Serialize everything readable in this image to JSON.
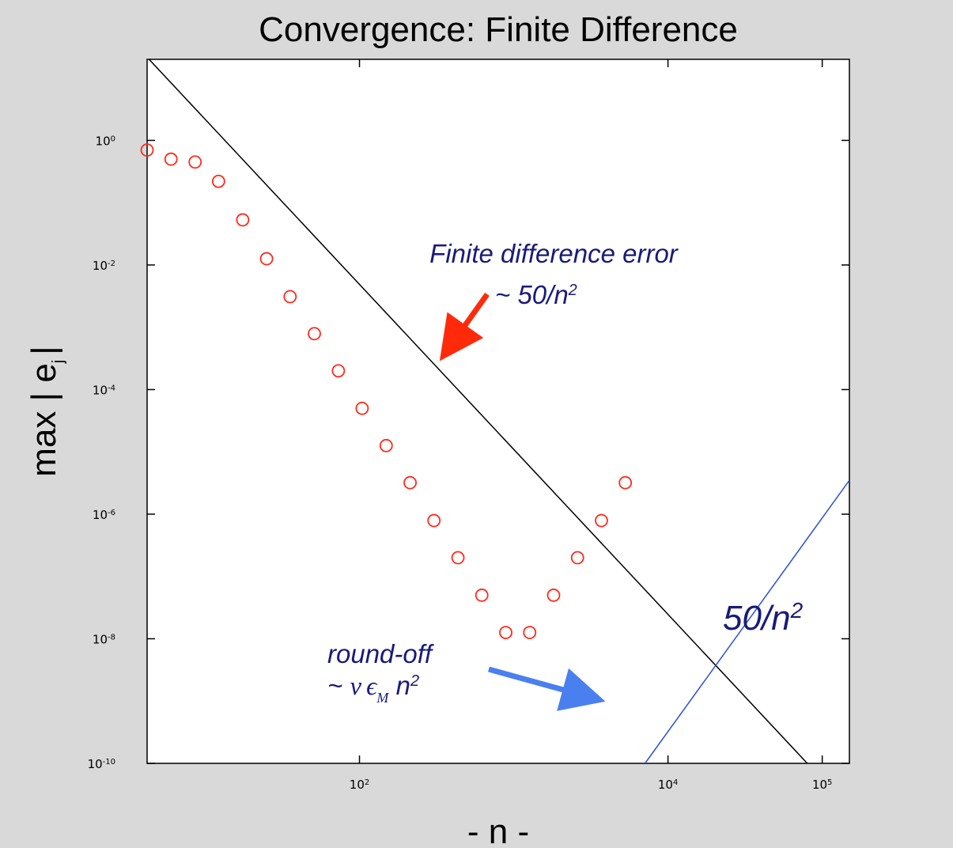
{
  "chart_data": {
    "type": "scatter",
    "title": "Convergence: Finite Difference",
    "xlabel": "- n -",
    "ylabel_main": "max | e",
    "ylabel_sub": "j",
    "ylabel_end": "|",
    "xscale": "log",
    "yscale": "log",
    "xlim": [
      4.2,
      150000
    ],
    "ylim": [
      1e-10,
      20
    ],
    "grid": false,
    "x_ticks": [
      {
        "base": "10",
        "exp": "2",
        "value": 100
      },
      {
        "base": "10",
        "exp": "4",
        "value": 10000
      },
      {
        "base": "10",
        "exp": "5",
        "value": 100000
      }
    ],
    "y_ticks": [
      {
        "base": "10",
        "exp": "0",
        "value": 1
      },
      {
        "base": "10",
        "exp": "-2",
        "value": 0.01
      },
      {
        "base": "10",
        "exp": "-4",
        "value": 0.0001
      },
      {
        "base": "10",
        "exp": "-6",
        "value": 1e-06
      },
      {
        "base": "10",
        "exp": "-8",
        "value": 1e-08
      },
      {
        "base": "10",
        "exp": "-10",
        "value": 1e-10
      }
    ],
    "series": [
      {
        "marker": "circle",
        "color": "#ff2a1a",
        "points": [
          [
            4.2,
            0.7
          ],
          [
            6,
            0.5
          ],
          [
            8.6,
            0.45
          ],
          [
            12.2,
            0.22
          ],
          [
            17.5,
            0.053
          ],
          [
            25,
            0.0126
          ],
          [
            35.5,
            0.0031
          ],
          [
            51,
            0.00079
          ],
          [
            73,
            0.0002
          ],
          [
            104,
            5e-05
          ],
          [
            149,
            1.26e-05
          ],
          [
            213,
            3.2e-06
          ],
          [
            304,
            7.9e-07
          ],
          [
            435,
            2e-07
          ],
          [
            621,
            5e-08
          ],
          [
            888,
            1.26e-08
          ],
          [
            1269,
            1.26e-08
          ],
          [
            1813,
            5e-08
          ],
          [
            2591,
            2e-07
          ],
          [
            3703,
            7.9e-07
          ],
          [
            5290,
            3.2e-06
          ]
        ]
      },
      {
        "style": "line",
        "color": "#000000",
        "points": [
          [
            4.2,
            21.6
          ],
          [
            80000,
            1e-10
          ]
        ]
      },
      {
        "style": "line",
        "color": "#2b4fd9",
        "points": [
          [
            7100,
            1e-10
          ],
          [
            150000,
            3.5e-06
          ]
        ]
      }
    ],
    "annotations": {
      "fd_line1": "Finite difference error",
      "fd_line2": "~ 50/n",
      "fd_exp": "2",
      "fd_arrow_color": "#ff2a0a",
      "big_label": "50/n",
      "big_exp": "2",
      "ro_line1": "round-off",
      "ro_tilde": "~ ",
      "ro_nu": "ν",
      "ro_eps": "ϵ",
      "ro_eps_sub": "M",
      "ro_n": " n",
      "ro_exp": "2",
      "ro_arrow_color": "#4a7ff0"
    }
  }
}
